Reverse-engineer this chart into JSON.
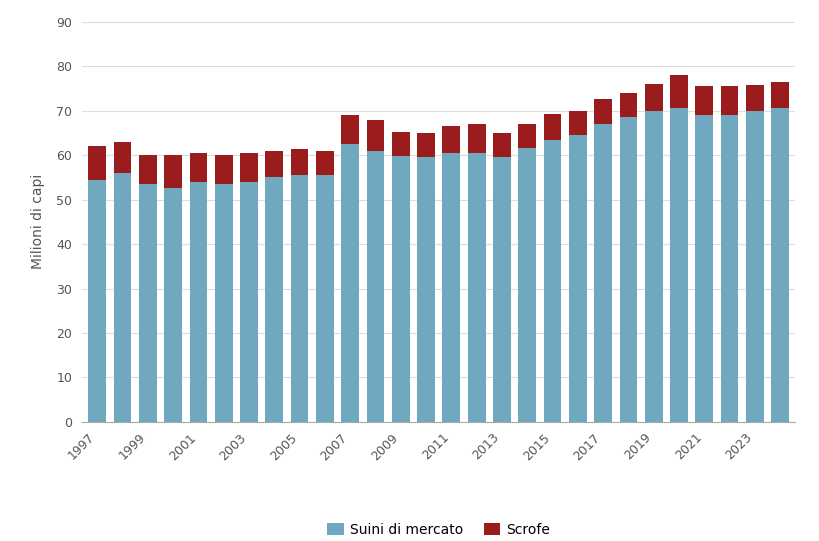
{
  "years": [
    1997,
    1998,
    1999,
    2000,
    2001,
    2002,
    2003,
    2004,
    2005,
    2006,
    2007,
    2008,
    2009,
    2010,
    2011,
    2012,
    2013,
    2014,
    2015,
    2016,
    2017,
    2018,
    2019,
    2020,
    2021,
    2022,
    2023,
    2024
  ],
  "market_hogs": [
    54.5,
    56.0,
    53.5,
    52.5,
    54.0,
    53.5,
    54.0,
    55.0,
    55.5,
    55.5,
    62.5,
    61.0,
    59.8,
    59.5,
    60.5,
    60.5,
    59.5,
    61.5,
    63.5,
    64.5,
    67.0,
    68.5,
    70.0,
    70.5,
    69.0,
    69.0,
    70.0,
    70.5
  ],
  "sows": [
    7.5,
    7.0,
    6.5,
    7.5,
    6.5,
    6.5,
    6.5,
    6.0,
    5.8,
    5.5,
    6.5,
    7.0,
    5.5,
    5.5,
    6.0,
    6.5,
    5.5,
    5.5,
    5.8,
    5.5,
    5.5,
    5.5,
    6.0,
    7.5,
    6.5,
    6.5,
    5.8,
    6.0
  ],
  "bar_color_market": "#6fa8bf",
  "bar_color_sows": "#9b1c1c",
  "ylabel": "Milioni di capi",
  "ylim": [
    0,
    90
  ],
  "yticks": [
    0,
    10,
    20,
    30,
    40,
    50,
    60,
    70,
    80,
    90
  ],
  "legend_market": "Suini di mercato",
  "legend_sows": "Scrofe",
  "background_color": "#ffffff",
  "spine_color": "#aaaaaa",
  "tick_label_color": "#555555",
  "ylabel_color": "#555555"
}
